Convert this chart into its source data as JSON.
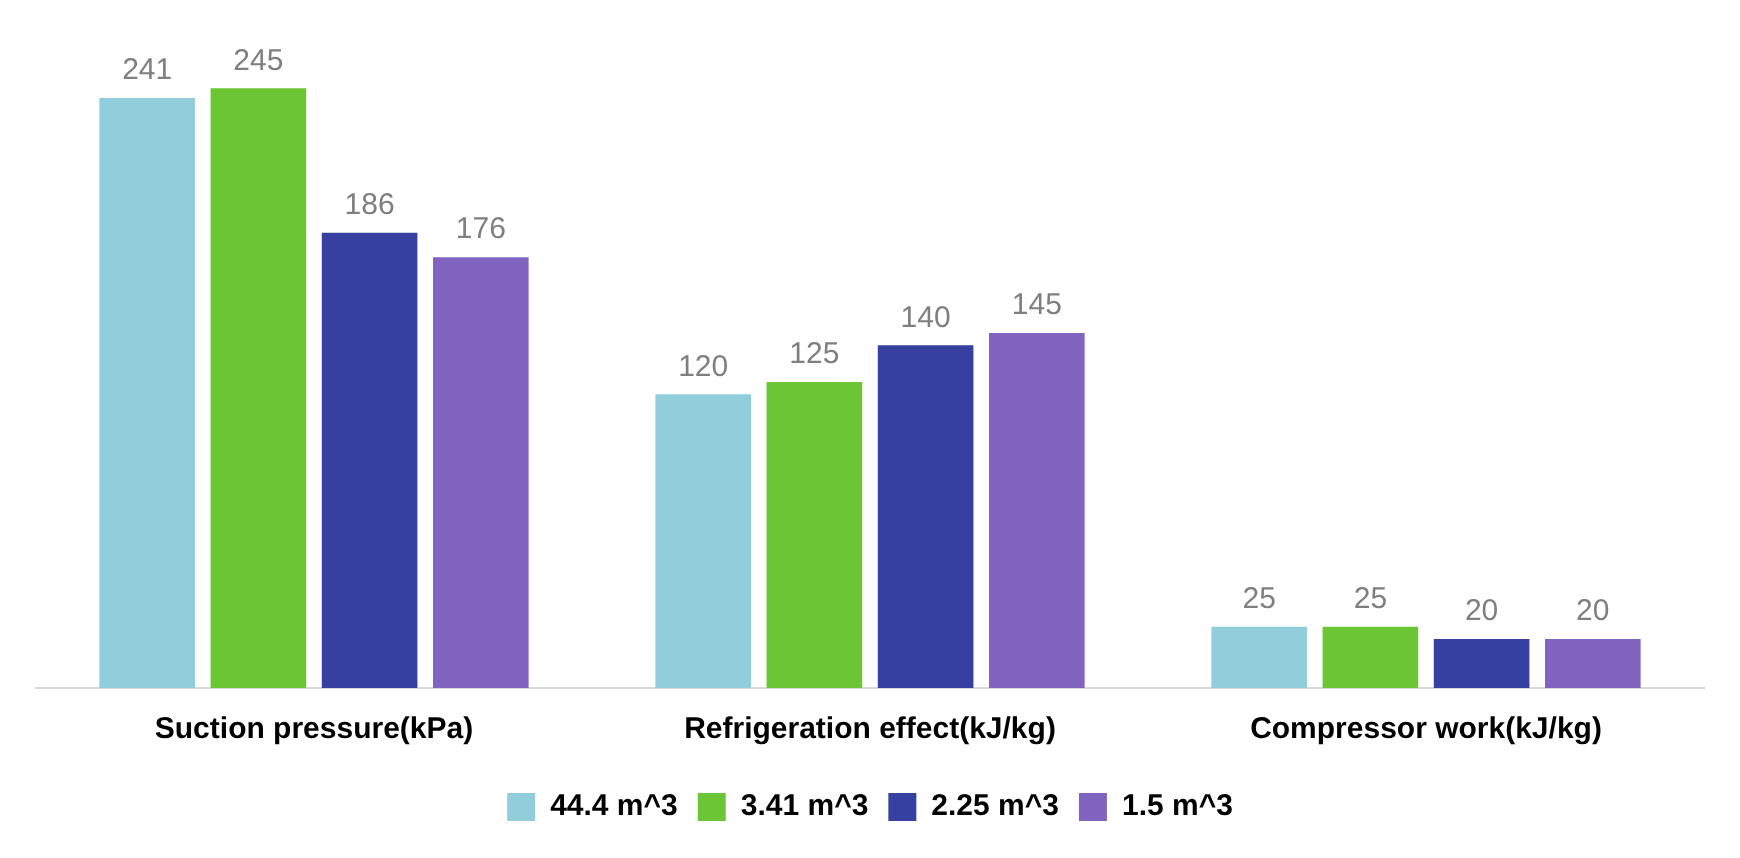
{
  "chart_data": {
    "type": "bar",
    "categories": [
      "Suction pressure(kPa)",
      "Refrigeration effect(kJ/kg)",
      "Compressor work(kJ/kg)"
    ],
    "series": [
      {
        "name": "44.4 m^3",
        "color": "#92cddc",
        "values": [
          241,
          120,
          25
        ]
      },
      {
        "name": "3.41 m^3",
        "color": "#6cc534",
        "values": [
          245,
          125,
          25
        ]
      },
      {
        "name": "2.25 m^3",
        "color": "#3640a0",
        "values": [
          186,
          140,
          20
        ]
      },
      {
        "name": "1.5 m^3",
        "color": "#8064c0",
        "values": [
          176,
          145,
          20
        ]
      }
    ],
    "data_labels": true,
    "grid": false,
    "legend": "bottom",
    "tick_labels": "x"
  }
}
